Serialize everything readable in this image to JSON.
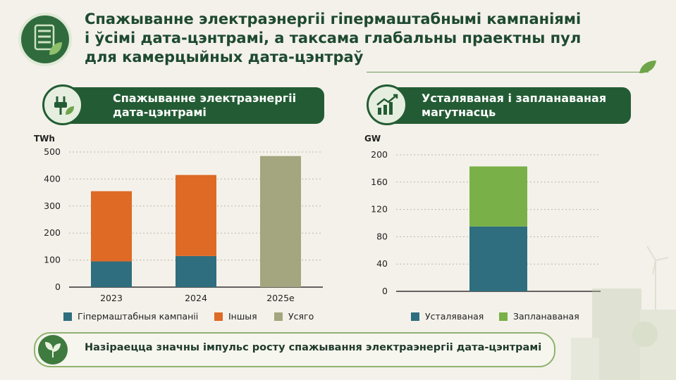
{
  "title_lines": [
    "Спажыванне электраэнергіі гіпермаштабнымі кампаніямі",
    "і ўсімі дата-цэнтрамі, а таксама глабальны праектны пул",
    "для камерцыйных дата-цэнтраў"
  ],
  "left_panel": {
    "title_lines": [
      "Спажыванне электраэнергіі",
      "дата-цэнтрамі"
    ],
    "icon": "plug-leaf-icon"
  },
  "right_panel": {
    "title_lines": [
      "Усталяваная і запланаваная",
      "магутнасць"
    ],
    "icon": "growth-chart-icon"
  },
  "footer": {
    "text": "Назіраецца значны імпульс росту спажывання электраэнергіі дата-цэнтрамі",
    "icon": "leaves-icon"
  },
  "colors": {
    "hyperscale": "#2e6e7e",
    "other": "#de6a26",
    "total": "#a3a67e",
    "installed": "#2e6e7e",
    "planned": "#7ab048",
    "dark_green": "#235c34"
  },
  "chart_data": [
    {
      "type": "bar",
      "stacked": true,
      "ylabel": "TWh",
      "ylim": [
        0,
        500
      ],
      "yticks": [
        0,
        100,
        200,
        300,
        400,
        500
      ],
      "categories": [
        "2023",
        "2024",
        "2025e"
      ],
      "series": [
        {
          "name": "Гіпермаштабныя кампаніі",
          "values": [
            95,
            115,
            0
          ],
          "color": "#2e6e7e"
        },
        {
          "name": "Іншыя",
          "values": [
            260,
            300,
            0
          ],
          "color": "#de6a26"
        },
        {
          "name": "Усяго",
          "values": [
            0,
            0,
            485
          ],
          "color": "#a3a67e"
        }
      ],
      "grid": true,
      "legend": "bottom"
    },
    {
      "type": "bar",
      "stacked": true,
      "ylabel": "GW",
      "ylim": [
        0,
        200
      ],
      "yticks": [
        0,
        40,
        80,
        120,
        160,
        200
      ],
      "categories": [
        ""
      ],
      "series": [
        {
          "name": "Усталяваная",
          "values": [
            95
          ],
          "color": "#2e6e7e"
        },
        {
          "name": "Запланаваная",
          "values": [
            88
          ],
          "color": "#7ab048"
        }
      ],
      "grid": true,
      "legend": "bottom"
    }
  ]
}
